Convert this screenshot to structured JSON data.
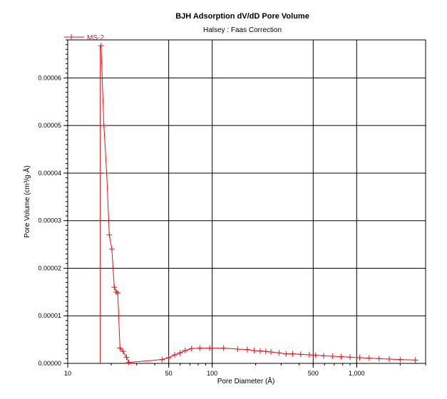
{
  "chart_data": {
    "type": "line",
    "title": "BJH Adsorption dV/dD Pore Volume",
    "subtitle": "Halsey : Faas Correction",
    "xlabel": "Pore Diameter (Å)",
    "ylabel": "Pore Volume (cm³/g·Å)",
    "xscale": "log",
    "xlim": [
      10,
      3000
    ],
    "ylim": [
      0,
      6.8e-05
    ],
    "x_tick_values": [
      10,
      50,
      100,
      500,
      1000
    ],
    "x_tick_labels": [
      "10",
      "50",
      "100",
      "500",
      "1,000"
    ],
    "y_tick_values": [
      0,
      1e-05,
      2e-05,
      3e-05,
      4e-05,
      5e-05,
      6e-05
    ],
    "y_tick_labels": [
      "0.00000",
      "0.00001",
      "0.00002",
      "0.00003",
      "0.00004",
      "0.00005",
      "0.00006"
    ],
    "x_gridlines": [
      50,
      100,
      500,
      1000
    ],
    "y_gridlines": [
      1e-05,
      2e-05,
      3e-05,
      4e-05,
      5e-05,
      6e-05
    ],
    "grid": true,
    "legend_position": "top-left",
    "series": [
      {
        "name": "MS-2",
        "color": "#e0131a",
        "marker": "plus",
        "drop_line_x": 16.8,
        "x": [
          17.0,
          17.8,
          18.6,
          19.4,
          20.2,
          21.0,
          21.7,
          22.2,
          23.0,
          24.2,
          25.5,
          26.5,
          45,
          50,
          55,
          60,
          65,
          72,
          82,
          96,
          120,
          150,
          175,
          195,
          215,
          235,
          255,
          290,
          325,
          360,
          410,
          470,
          520,
          590,
          680,
          780,
          900,
          1050,
          1220,
          1430,
          1680,
          2000,
          2550
        ],
        "y": [
          6.68e-05,
          5e-05,
          4e-05,
          2.7e-05,
          2.4e-05,
          1.6e-05,
          1.5e-05,
          1.48e-05,
          3.2e-06,
          2.5e-06,
          1.3e-06,
          2e-07,
          8e-07,
          1.2e-06,
          1.8e-06,
          2.2e-06,
          2.7e-06,
          3.1e-06,
          3.2e-06,
          3.2e-06,
          3.2e-06,
          3e-06,
          2.9e-06,
          2.7e-06,
          2.6e-06,
          2.5e-06,
          2.4e-06,
          2.2e-06,
          2e-06,
          2e-06,
          1.9e-06,
          1.8e-06,
          1.7e-06,
          1.6e-06,
          1.5e-06,
          1.4e-06,
          1.3e-06,
          1.2e-06,
          1.1e-06,
          1e-06,
          9e-07,
          8e-07,
          7e-07
        ]
      }
    ]
  }
}
